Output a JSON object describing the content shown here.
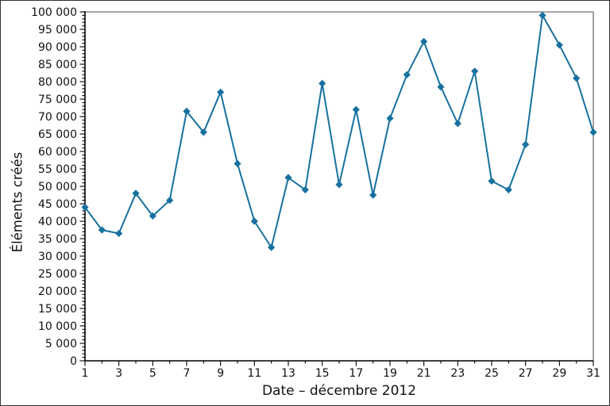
{
  "chart_data": {
    "type": "line",
    "title": "",
    "xlabel": "Date – décembre 2012",
    "ylabel": "Éléments créés",
    "x": [
      1,
      2,
      3,
      4,
      5,
      6,
      7,
      8,
      9,
      10,
      11,
      12,
      13,
      14,
      15,
      16,
      17,
      18,
      19,
      20,
      21,
      22,
      23,
      24,
      25,
      26,
      27,
      28,
      29,
      30,
      31
    ],
    "values": [
      44000,
      37500,
      36500,
      48000,
      41500,
      46000,
      71500,
      65500,
      77000,
      56500,
      40000,
      32500,
      52500,
      49000,
      79500,
      50500,
      72000,
      47500,
      69500,
      82000,
      91500,
      78500,
      68000,
      83000,
      51500,
      49000,
      62000,
      99000,
      90500,
      81000,
      65500
    ],
    "xlim": [
      1,
      31
    ],
    "ylim": [
      0,
      100000
    ],
    "x_tick_values": [
      1,
      3,
      5,
      7,
      9,
      11,
      13,
      15,
      17,
      19,
      21,
      23,
      25,
      27,
      29,
      31
    ],
    "x_tick_labels": [
      "1",
      "3",
      "5",
      "7",
      "9",
      "11",
      "13",
      "15",
      "17",
      "19",
      "21",
      "23",
      "25",
      "27",
      "29",
      "31"
    ],
    "x_minor_step": 1,
    "y_tick_values": [
      0,
      5000,
      10000,
      15000,
      20000,
      25000,
      30000,
      35000,
      40000,
      45000,
      50000,
      55000,
      60000,
      65000,
      70000,
      75000,
      80000,
      85000,
      90000,
      95000,
      100000
    ],
    "y_tick_labels": [
      "0",
      "5 000",
      "10 000",
      "15 000",
      "20 000",
      "25 000",
      "30 000",
      "35 000",
      "40 000",
      "45 000",
      "50 000",
      "55 000",
      "60 000",
      "65 000",
      "70 000",
      "75 000",
      "80 000",
      "85 000",
      "90 000",
      "95 000",
      "100 000"
    ],
    "y_minor_step": 1000,
    "marker": "diamond",
    "grid": false,
    "legend": null,
    "line_color": "#17719f",
    "axis_color": "#000000",
    "frame_color": "#8a8a8a"
  }
}
